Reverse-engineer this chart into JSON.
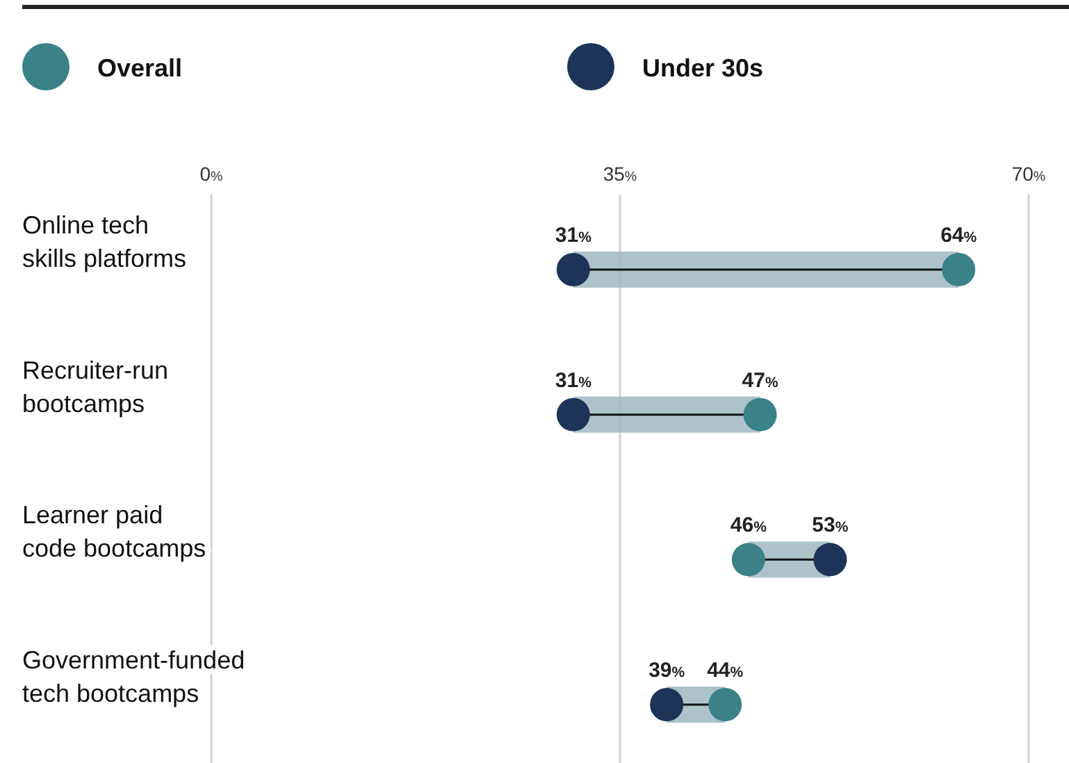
{
  "chart_data": {
    "type": "scatter",
    "orientation": "horizontal",
    "categories": [
      "Online tech\nskills platforms",
      "Recruiter-run\nbootcamps",
      "Learner paid\ncode bootcamps",
      "Government-funded\ntech bootcamps"
    ],
    "series": [
      {
        "name": "Overall",
        "color": "#3a8188",
        "values": [
          64,
          47,
          46,
          44
        ],
        "value_labels": [
          "64%",
          "47%",
          "46%",
          "44%"
        ]
      },
      {
        "name": "Under 30s",
        "color": "#1b3458",
        "values": [
          31,
          31,
          53,
          39
        ],
        "value_labels": [
          "31%",
          "31%",
          "53%",
          "39%"
        ]
      }
    ],
    "xlim": [
      0,
      70
    ],
    "xticks": [
      {
        "value": 0,
        "label": "0%"
      },
      {
        "value": 35,
        "label": "35%"
      },
      {
        "value": 70,
        "label": "70%"
      }
    ],
    "grid": "x",
    "legend": "top left",
    "marker": "circle"
  }
}
